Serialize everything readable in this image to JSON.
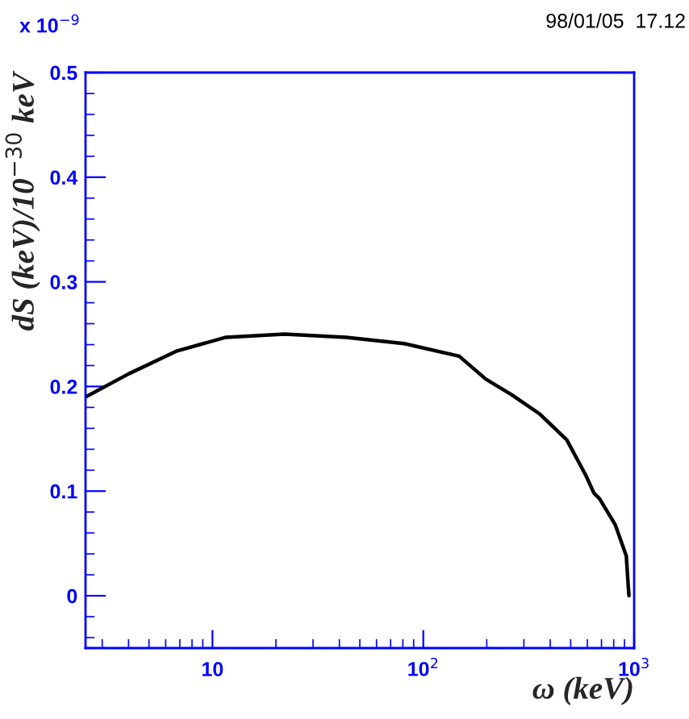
{
  "chart_data": {
    "type": "line",
    "xlabel": "ω (keV)",
    "ylabel": "dS (keV)/10$^{−30}$ keV",
    "annotations": [
      "x 10$^{−9}$",
      "98/01/05  17.12"
    ],
    "x": [
      2.5,
      4.0,
      6.8,
      11.6,
      22,
      43,
      81,
      148,
      198,
      263,
      355,
      479,
      590,
      645,
      684,
      813,
      918,
      935,
      945
    ],
    "series": [
      {
        "color": "#000000",
        "values": [
          0.19,
          0.212,
          0.234,
          0.247,
          0.25,
          0.247,
          0.241,
          0.229,
          0.207,
          0.192,
          0.174,
          0.149,
          0.115,
          0.098,
          0.093,
          0.068,
          0.038,
          0.013,
          0.0
        ]
      }
    ],
    "log": "x",
    "xlim": [
      2.5,
      1000
    ],
    "xticks": [
      {
        "value": 10,
        "label": "10"
      },
      {
        "value": 100,
        "label": "10$^{2}$"
      },
      {
        "value": 1000,
        "label": "10$^{3}$"
      }
    ],
    "ylim": [
      -0.05,
      0.5
    ],
    "yticks": [
      0,
      0.1,
      0.2,
      0.3,
      0.4,
      0.5
    ],
    "grid": false,
    "legend": false,
    "marker": "none",
    "line_style": "solid"
  }
}
